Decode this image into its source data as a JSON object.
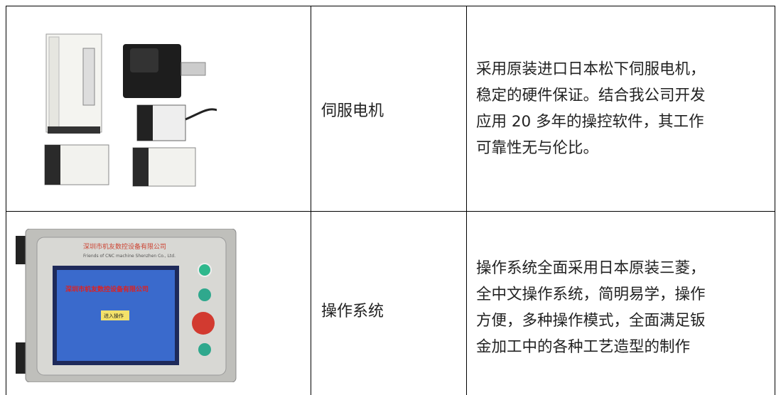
{
  "table": {
    "rows": [
      {
        "name": "伺服电机",
        "description_lines": [
          "采用原装进口日本松下伺服电机，",
          "稳定的硬件保证。结合我公司开发",
          "应用 20 多年的操控软件，其工作",
          "可靠性无与伦比。"
        ]
      },
      {
        "name": "操作系统",
        "description_lines": [
          "操作系统全面采用日本原装三菱，",
          "全中文操作系统，简明易学，操作",
          "方便，多种操作模式，全面满足钣",
          "金加工中的各种工艺造型的制作"
        ],
        "panel": {
          "company": "深圳市机友数控设备有限公司",
          "company_en": "Friends of CNC machine Shenzhen Co., Ltd.",
          "screen_title": "深圳市机友数控设备有限公司",
          "button": "进入操作"
        }
      }
    ]
  }
}
